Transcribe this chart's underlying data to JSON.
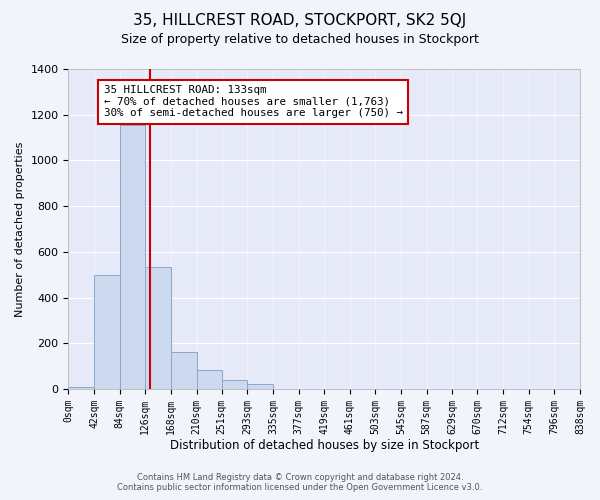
{
  "title": "35, HILLCREST ROAD, STOCKPORT, SK2 5QJ",
  "subtitle": "Size of property relative to detached houses in Stockport",
  "xlabel": "Distribution of detached houses by size in Stockport",
  "ylabel": "Number of detached properties",
  "bar_edges": [
    0,
    42,
    84,
    126,
    168,
    210,
    251,
    293,
    335,
    377,
    419,
    461,
    503,
    545,
    587,
    629,
    670,
    712,
    754,
    796,
    838
  ],
  "bar_heights": [
    10,
    500,
    1155,
    535,
    160,
    85,
    38,
    20,
    0,
    0,
    0,
    0,
    0,
    0,
    0,
    0,
    0,
    0,
    0,
    0
  ],
  "bar_color": "#ccd9ee",
  "bar_edgecolor": "#89a8cc",
  "vline_x": 133,
  "vline_color": "#cc0000",
  "annotation_text": "35 HILLCREST ROAD: 133sqm\n← 70% of detached houses are smaller (1,763)\n30% of semi-detached houses are larger (750) →",
  "annotation_box_edgecolor": "#cc0000",
  "annotation_box_facecolor": "#ffffff",
  "ylim": [
    0,
    1400
  ],
  "tick_labels": [
    "0sqm",
    "42sqm",
    "84sqm",
    "126sqm",
    "168sqm",
    "210sqm",
    "251sqm",
    "293sqm",
    "335sqm",
    "377sqm",
    "419sqm",
    "461sqm",
    "503sqm",
    "545sqm",
    "587sqm",
    "629sqm",
    "670sqm",
    "712sqm",
    "754sqm",
    "796sqm",
    "838sqm"
  ],
  "footer_line1": "Contains HM Land Registry data © Crown copyright and database right 2024.",
  "footer_line2": "Contains public sector information licensed under the Open Government Licence v3.0.",
  "bg_color": "#f2f4fb",
  "plot_bg_color": "#e6eaf8",
  "grid_color": "#ffffff",
  "title_fontsize": 11,
  "subtitle_fontsize": 9,
  "xlabel_fontsize": 8.5,
  "ylabel_fontsize": 8,
  "tick_fontsize": 7,
  "footer_fontsize": 6
}
